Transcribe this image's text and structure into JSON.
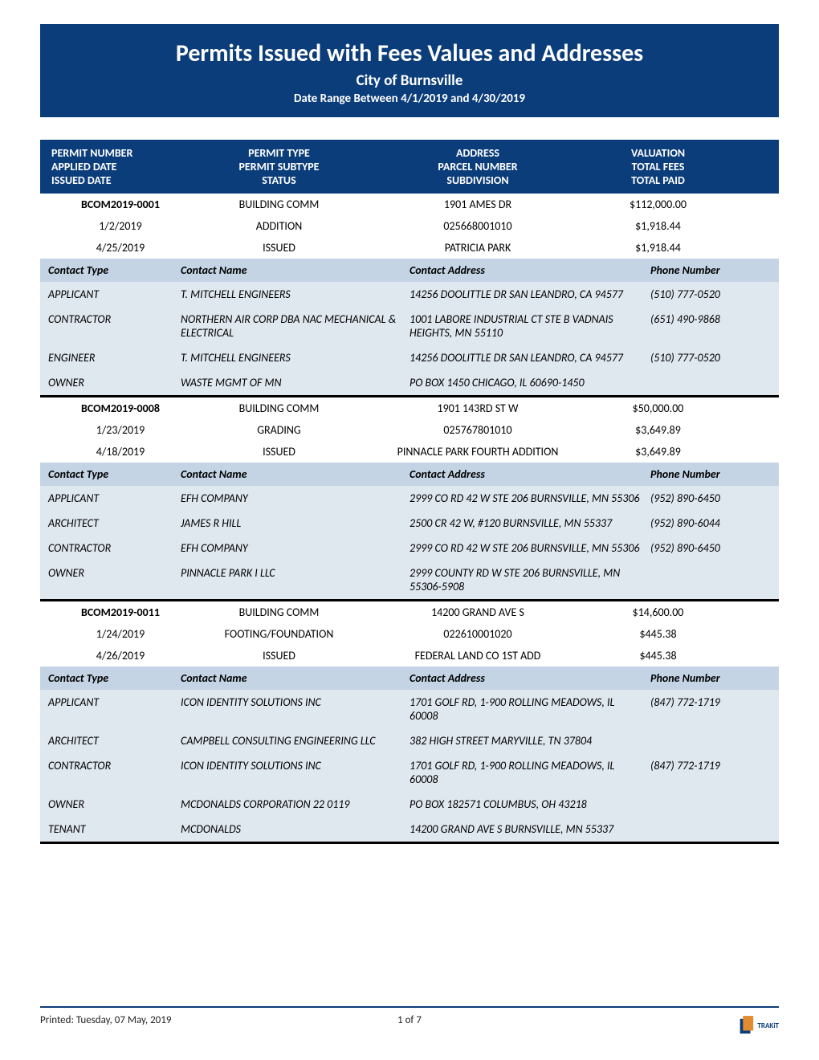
{
  "colors": {
    "brand_blue": "#0b3d7a",
    "contact_header_bg": "#c4d4e4",
    "contact_row_bg": "#dfe7ef",
    "divider": "#000000",
    "footer_line": "#0b3d7a",
    "logo_orange": "#e38b2f"
  },
  "header": {
    "title": "Permits Issued with Fees Values and Addresses",
    "subtitle1": "City of Burnsville",
    "subtitle2": "Date Range Between 4/1/2019 and 4/30/2019"
  },
  "column_headers": {
    "c1a": "PERMIT NUMBER",
    "c1b": "APPLIED DATE",
    "c1c": "ISSUED DATE",
    "c2a": "PERMIT TYPE",
    "c2b": "PERMIT SUBTYPE",
    "c2c": "STATUS",
    "c3a": "ADDRESS",
    "c3b": "PARCEL NUMBER",
    "c3c": "SUBDIVISION",
    "c4a": "VALUATION",
    "c4b": "TOTAL FEES",
    "c4c": "TOTAL PAID"
  },
  "contact_headers": {
    "type": "Contact Type",
    "name": "Contact Name",
    "address": "Contact Address",
    "phone": "Phone Number"
  },
  "permits": [
    {
      "number": "BCOM2019-0001",
      "permit_type": "BUILDING COMM",
      "address": "1901 AMES DR",
      "valuation": "$112,000.00",
      "applied": "1/2/2019",
      "subtype": "ADDITION",
      "parcel": "025668001010",
      "fees": "$1,918.44",
      "issued": "4/25/2019",
      "status": "ISSUED",
      "subdivision": "PATRICIA PARK",
      "paid": "$1,918.44",
      "contacts": [
        {
          "type": "APPLICANT",
          "name": "T. MITCHELL ENGINEERS",
          "address": "14256 DOOLITTLE DR  SAN LEANDRO, CA 94577",
          "phone": "(510) 777-0520"
        },
        {
          "type": "CONTRACTOR",
          "name": "NORTHERN AIR CORP DBA NAC MECHANICAL & ELECTRICAL",
          "address": "1001 LABORE INDUSTRIAL CT STE B VADNAIS HEIGHTS, MN 55110",
          "phone": "(651) 490-9868"
        },
        {
          "type": "ENGINEER",
          "name": "T. MITCHELL ENGINEERS",
          "address": "14256 DOOLITTLE DR  SAN LEANDRO, CA 94577",
          "phone": "(510) 777-0520"
        },
        {
          "type": "OWNER",
          "name": "WASTE MGMT OF MN",
          "address": "PO BOX 1450  CHICAGO, IL 60690-1450",
          "phone": ""
        }
      ]
    },
    {
      "number": "BCOM2019-0008",
      "permit_type": "BUILDING COMM",
      "address": "1901 143RD ST W",
      "valuation": "$50,000.00",
      "applied": "1/23/2019",
      "subtype": "GRADING",
      "parcel": "025767801010",
      "fees": "$3,649.89",
      "issued": "4/18/2019",
      "status": "ISSUED",
      "subdivision": "PINNACLE PARK FOURTH ADDITION",
      "paid": "$3,649.89",
      "contacts": [
        {
          "type": "APPLICANT",
          "name": "EFH COMPANY",
          "address": "2999 CO RD 42 W STE 206 BURNSVILLE, MN 55306",
          "phone": "(952) 890-6450"
        },
        {
          "type": "ARCHITECT",
          "name": "JAMES R HILL",
          "address": "2500 CR 42 W, #120  BURNSVILLE, MN 55337",
          "phone": "(952) 890-6044"
        },
        {
          "type": "CONTRACTOR",
          "name": "EFH COMPANY",
          "address": "2999 CO RD 42 W STE 206 BURNSVILLE, MN 55306",
          "phone": "(952) 890-6450"
        },
        {
          "type": "OWNER",
          "name": "PINNACLE PARK I LLC",
          "address": "2999 COUNTY RD W STE 206  BURNSVILLE, MN 55306-5908",
          "phone": ""
        }
      ]
    },
    {
      "number": "BCOM2019-0011",
      "permit_type": "BUILDING COMM",
      "address": "14200 GRAND AVE S",
      "valuation": "$14,600.00",
      "applied": "1/24/2019",
      "subtype": "FOOTING/FOUNDATION",
      "parcel": "022610001020",
      "fees": "$445.38",
      "issued": "4/26/2019",
      "status": "ISSUED",
      "subdivision": "FEDERAL LAND CO 1ST ADD",
      "paid": "$445.38",
      "contacts": [
        {
          "type": "APPLICANT",
          "name": "ICON IDENTITY SOLUTIONS INC",
          "address": "1701 GOLF RD, 1-900  ROLLING MEADOWS, IL 60008",
          "phone": "(847) 772-1719"
        },
        {
          "type": "ARCHITECT",
          "name": "CAMPBELL CONSULTING ENGINEERING LLC",
          "address": "382 HIGH STREET  MARYVILLE, TN 37804",
          "phone": ""
        },
        {
          "type": "CONTRACTOR",
          "name": "ICON IDENTITY SOLUTIONS INC",
          "address": "1701 GOLF RD, 1-900  ROLLING MEADOWS, IL 60008",
          "phone": "(847) 772-1719"
        },
        {
          "type": "OWNER",
          "name": "MCDONALDS CORPORATION 22 0119",
          "address": "PO BOX 182571  COLUMBUS, OH 43218",
          "phone": ""
        },
        {
          "type": "TENANT",
          "name": "MCDONALDS",
          "address": "14200 GRAND AVE S  BURNSVILLE, MN 55337",
          "phone": ""
        }
      ]
    }
  ],
  "footer": {
    "printed": "Printed: Tuesday, 07 May, 2019",
    "pager": "1 of 7",
    "logo_text": "TRAKiT"
  }
}
